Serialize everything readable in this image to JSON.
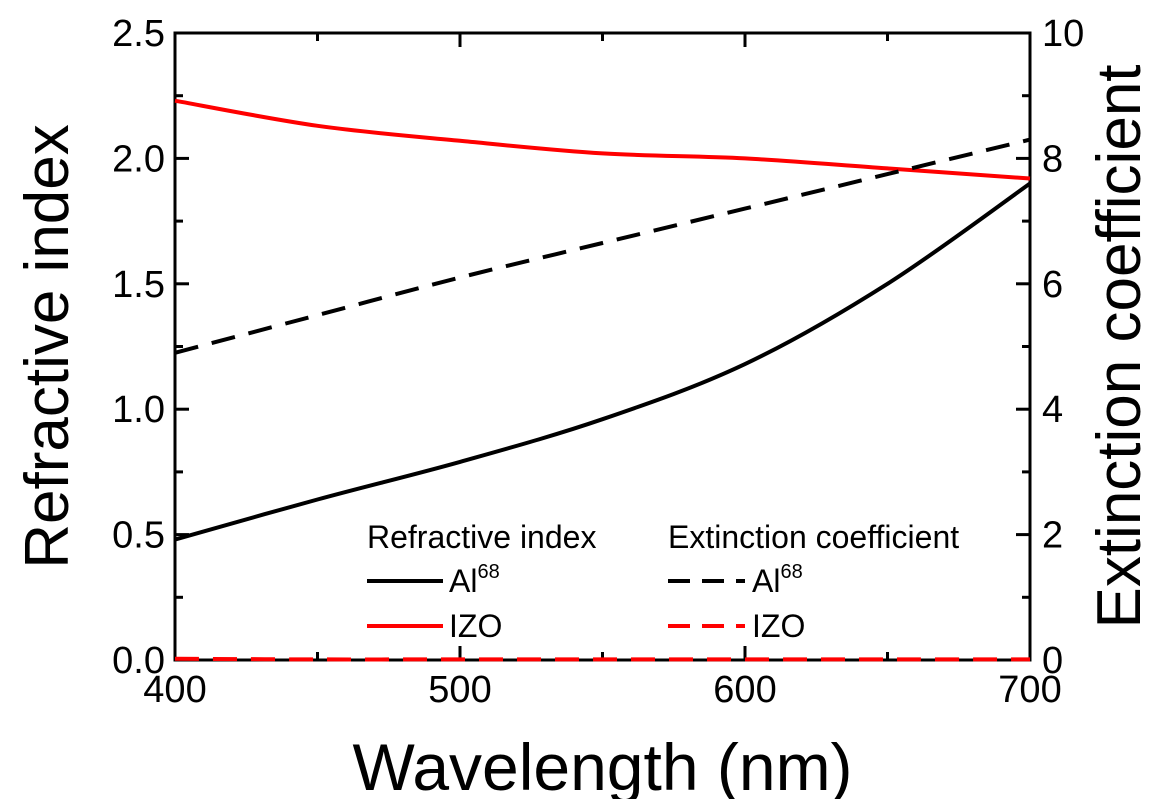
{
  "chart_data": {
    "type": "line",
    "xlabel": "Wavelength (nm)",
    "ylabel": "Refractive index",
    "y2label": "Extinction coefficient",
    "xlim": [
      400,
      700
    ],
    "ylim": [
      0,
      2.5
    ],
    "y2lim": [
      0,
      10
    ],
    "x_ticks": [
      "400",
      "500",
      "600",
      "700"
    ],
    "y_ticks": [
      "0.0",
      "0.5",
      "1.0",
      "1.5",
      "2.0",
      "2.5"
    ],
    "y2_ticks": [
      "0",
      "2",
      "4",
      "6",
      "8",
      "10"
    ],
    "grid": false,
    "legend": {
      "position": "bottom-right",
      "headers": [
        "Refractive index",
        "Extinction coefficient"
      ],
      "entries": [
        {
          "label": "Al",
          "superscript": "68"
        },
        {
          "label": "IZO",
          "superscript": ""
        },
        {
          "label": "Al",
          "superscript": "68"
        },
        {
          "label": "IZO",
          "superscript": ""
        }
      ]
    },
    "series": [
      {
        "name": "Al",
        "quantity": "refractive index",
        "axis": "left",
        "color": "#000000",
        "dash": "solid",
        "x": [
          400,
          450,
          500,
          550,
          600,
          650,
          700
        ],
        "y": [
          0.48,
          0.64,
          0.79,
          0.96,
          1.18,
          1.5,
          1.9
        ]
      },
      {
        "name": "IZO",
        "quantity": "refractive index",
        "axis": "left",
        "color": "#ff0000",
        "dash": "solid",
        "x": [
          400,
          450,
          500,
          550,
          600,
          650,
          700
        ],
        "y": [
          2.23,
          2.13,
          2.07,
          2.02,
          2.0,
          1.96,
          1.92
        ]
      },
      {
        "name": "Al",
        "quantity": "extinction coefficient",
        "axis": "right",
        "color": "#000000",
        "dash": "dashed",
        "x": [
          400,
          450,
          500,
          550,
          600,
          650,
          700
        ],
        "y": [
          4.9,
          5.5,
          6.1,
          6.65,
          7.2,
          7.75,
          8.3
        ]
      },
      {
        "name": "IZO",
        "quantity": "extinction coefficient",
        "axis": "right",
        "color": "#ff0000",
        "dash": "dashed",
        "x": [
          400,
          450,
          500,
          550,
          600,
          650,
          700
        ],
        "y": [
          0.02,
          0.01,
          0.01,
          0.01,
          0.01,
          0.01,
          0.01
        ]
      }
    ]
  }
}
